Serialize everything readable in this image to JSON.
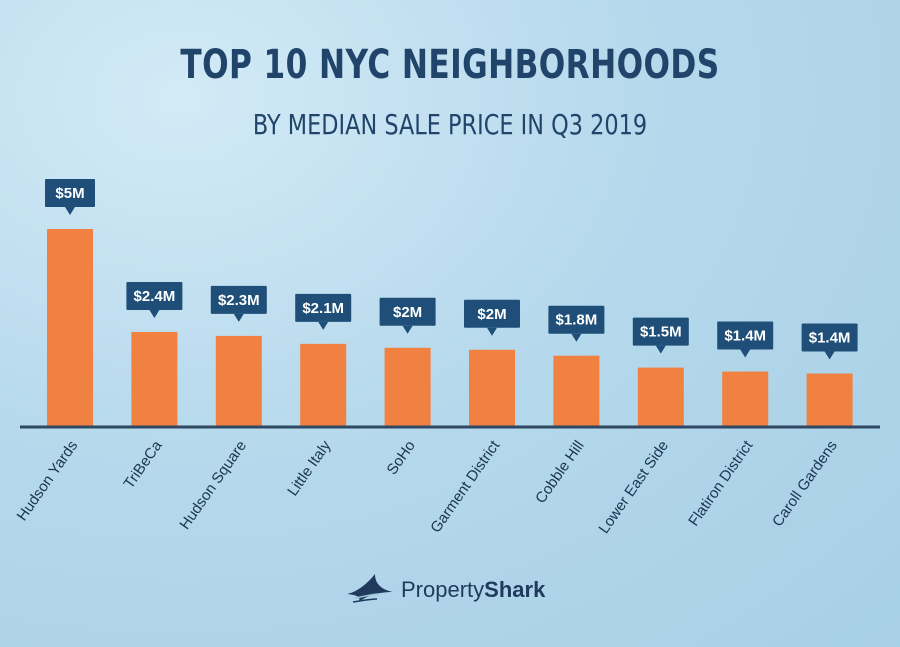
{
  "header": {
    "title": "TOP 10 NYC NEIGHBORHOODS",
    "subtitle": "BY MEDIAN SALE PRICE IN Q3 2019"
  },
  "brand": {
    "name_part1": "Property",
    "name_part2": "Shark",
    "icon": "shark-fin-icon"
  },
  "colors": {
    "bar": "#f08140",
    "axis": "#2f4864",
    "label_bg": "#1f4f78",
    "label_text": "#ffffff",
    "title": "#20446a",
    "tick_text": "#1c3550"
  },
  "chart_data": {
    "type": "bar",
    "title": "TOP 10 NYC NEIGHBORHOODS",
    "subtitle": "BY MEDIAN SALE PRICE IN Q3 2019",
    "categories": [
      "Hudson Yards",
      "TriBeCa",
      "Hudson Square",
      "Little Italy",
      "SoHo",
      "Garment District",
      "Cobble Hill",
      "Lower East Side",
      "Flatiron District",
      "Caroll Gardens"
    ],
    "values": [
      5.0,
      2.4,
      2.3,
      2.1,
      2.0,
      1.95,
      1.8,
      1.5,
      1.4,
      1.35
    ],
    "data_labels": [
      "$5M",
      "$2.4M",
      "$2.3M",
      "$2.1M",
      "$2M",
      "$2M",
      "$1.8M",
      "$1.5M",
      "$1.4M",
      "$1.4M"
    ],
    "unit": "USD millions",
    "ylim": [
      0,
      5
    ],
    "grid": false,
    "legend": "none"
  }
}
